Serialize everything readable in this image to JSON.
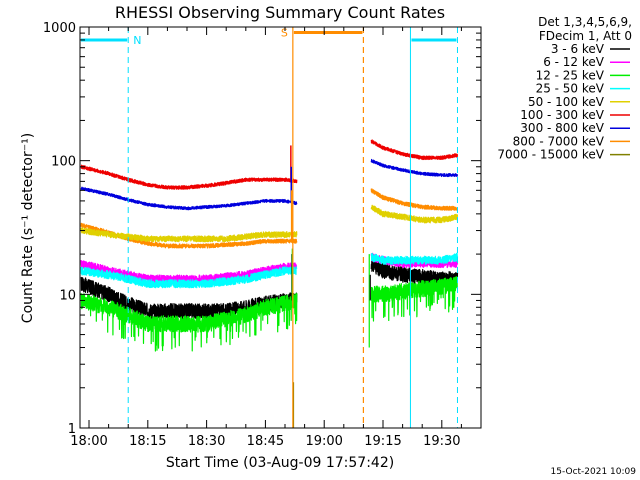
{
  "header": {
    "title": "RHESSI Observing Summary Count Rates",
    "xlabel": "Start Time (03-Aug-09 17:57:42)",
    "ylabel": "Count Rate (s⁻¹ detector⁻¹)",
    "date_stamp": "15-Oct-2021 10:09"
  },
  "legend": {
    "header_line1": "Det 1,3,4,5,6,9,",
    "header_line2": "FDecim 1, Att 0",
    "entries": [
      {
        "label": "3 - 6 keV",
        "color": "#000000"
      },
      {
        "label": "6 - 12 keV",
        "color": "#ff00ff"
      },
      {
        "label": "12 - 25 keV",
        "color": "#00ee00"
      },
      {
        "label": "25 - 50 keV",
        "color": "#00ffff"
      },
      {
        "label": "50 - 100 keV",
        "color": "#e0d000"
      },
      {
        "label": "100 - 300 keV",
        "color": "#ee0000"
      },
      {
        "label": "300 - 800 keV",
        "color": "#0000dd"
      },
      {
        "label": "800 - 7000 keV",
        "color": "#ff8c00"
      },
      {
        "label": "7000 - 15000 keV",
        "color": "#808000"
      }
    ]
  },
  "markers": {
    "night_label": "N",
    "saa_label": "S",
    "night_color": "#00e0ff",
    "saa_color": "#ff8c00"
  },
  "chart_data": {
    "type": "line",
    "title": "RHESSI Observing Summary Count Rates",
    "xlabel": "Start Time (03-Aug-09 17:57:42)",
    "ylabel": "Count Rate (s⁻¹ detector⁻¹)",
    "y_scale": "log",
    "ylim": [
      1,
      1000
    ],
    "xlim": [
      "17:57:42",
      "19:40:00"
    ],
    "x_ticks": [
      "18:00",
      "18:15",
      "18:30",
      "18:45",
      "19:00",
      "19:15",
      "19:30"
    ],
    "y_ticks": [
      "1",
      "10",
      "100",
      "1000"
    ],
    "grid": false,
    "legend_position": "right",
    "gap": [
      "18:54",
      "19:12"
    ],
    "x_times_segment1": [
      "17:58",
      "18:05",
      "18:10",
      "18:15",
      "18:20",
      "18:25",
      "18:30",
      "18:35",
      "18:40",
      "18:45",
      "18:50",
      "18:53"
    ],
    "x_times_segment2": [
      "19:12",
      "19:15",
      "19:20",
      "19:25",
      "19:30",
      "19:34"
    ],
    "series": [
      {
        "name": "3 - 6 keV",
        "segment1": [
          12,
          10,
          8.5,
          7.5,
          7.5,
          7.5,
          7.5,
          7.5,
          8,
          8.5,
          9,
          9
        ],
        "segment2": [
          17,
          15,
          14,
          13.5,
          13,
          13
        ]
      },
      {
        "name": "6 - 12 keV",
        "segment1": [
          17,
          15,
          14,
          13,
          13,
          13,
          13,
          13.5,
          14,
          15,
          16,
          16
        ],
        "segment2": [
          19,
          18,
          17,
          17,
          17,
          17
        ]
      },
      {
        "name": "12 - 25 keV",
        "segment1": [
          9,
          8,
          7,
          6,
          6,
          6,
          6,
          6.5,
          7,
          8,
          8.5,
          9
        ],
        "segment2": [
          10,
          10,
          10.5,
          11,
          11.5,
          12
        ]
      },
      {
        "name": "25 - 50 keV",
        "segment1": [
          15,
          14,
          13,
          12,
          12,
          12,
          12,
          12.5,
          13,
          14,
          15,
          15
        ],
        "segment2": [
          19,
          18,
          18,
          18,
          18,
          19
        ]
      },
      {
        "name": "50 - 100 keV",
        "segment1": [
          30,
          28,
          27,
          26,
          26,
          26,
          26,
          26,
          27,
          28,
          28,
          28
        ],
        "segment2": [
          45,
          40,
          38,
          36,
          36,
          38
        ]
      },
      {
        "name": "100 - 300 keV",
        "segment1": [
          90,
          80,
          72,
          66,
          63,
          63,
          65,
          68,
          72,
          72,
          72,
          70
        ],
        "segment2": [
          140,
          125,
          112,
          105,
          105,
          110
        ]
      },
      {
        "name": "300 - 800 keV",
        "segment1": [
          62,
          56,
          51,
          47,
          45,
          44,
          45,
          46,
          48,
          50,
          50,
          48
        ],
        "segment2": [
          100,
          92,
          85,
          80,
          78,
          78
        ]
      },
      {
        "name": "800 - 7000 keV",
        "segment1": [
          33,
          29,
          26,
          24,
          23,
          23,
          23,
          23.5,
          24,
          25,
          25,
          25
        ],
        "segment2": [
          60,
          53,
          48,
          45,
          44,
          44
        ]
      },
      {
        "name": "7000 - 15000 keV",
        "segment1": [],
        "segment2": []
      }
    ],
    "night_intervals": [
      [
        "17:57:42",
        "18:10"
      ],
      [
        "19:22",
        "19:34"
      ]
    ],
    "saa_interval": [
      "18:52",
      "19:10"
    ]
  }
}
